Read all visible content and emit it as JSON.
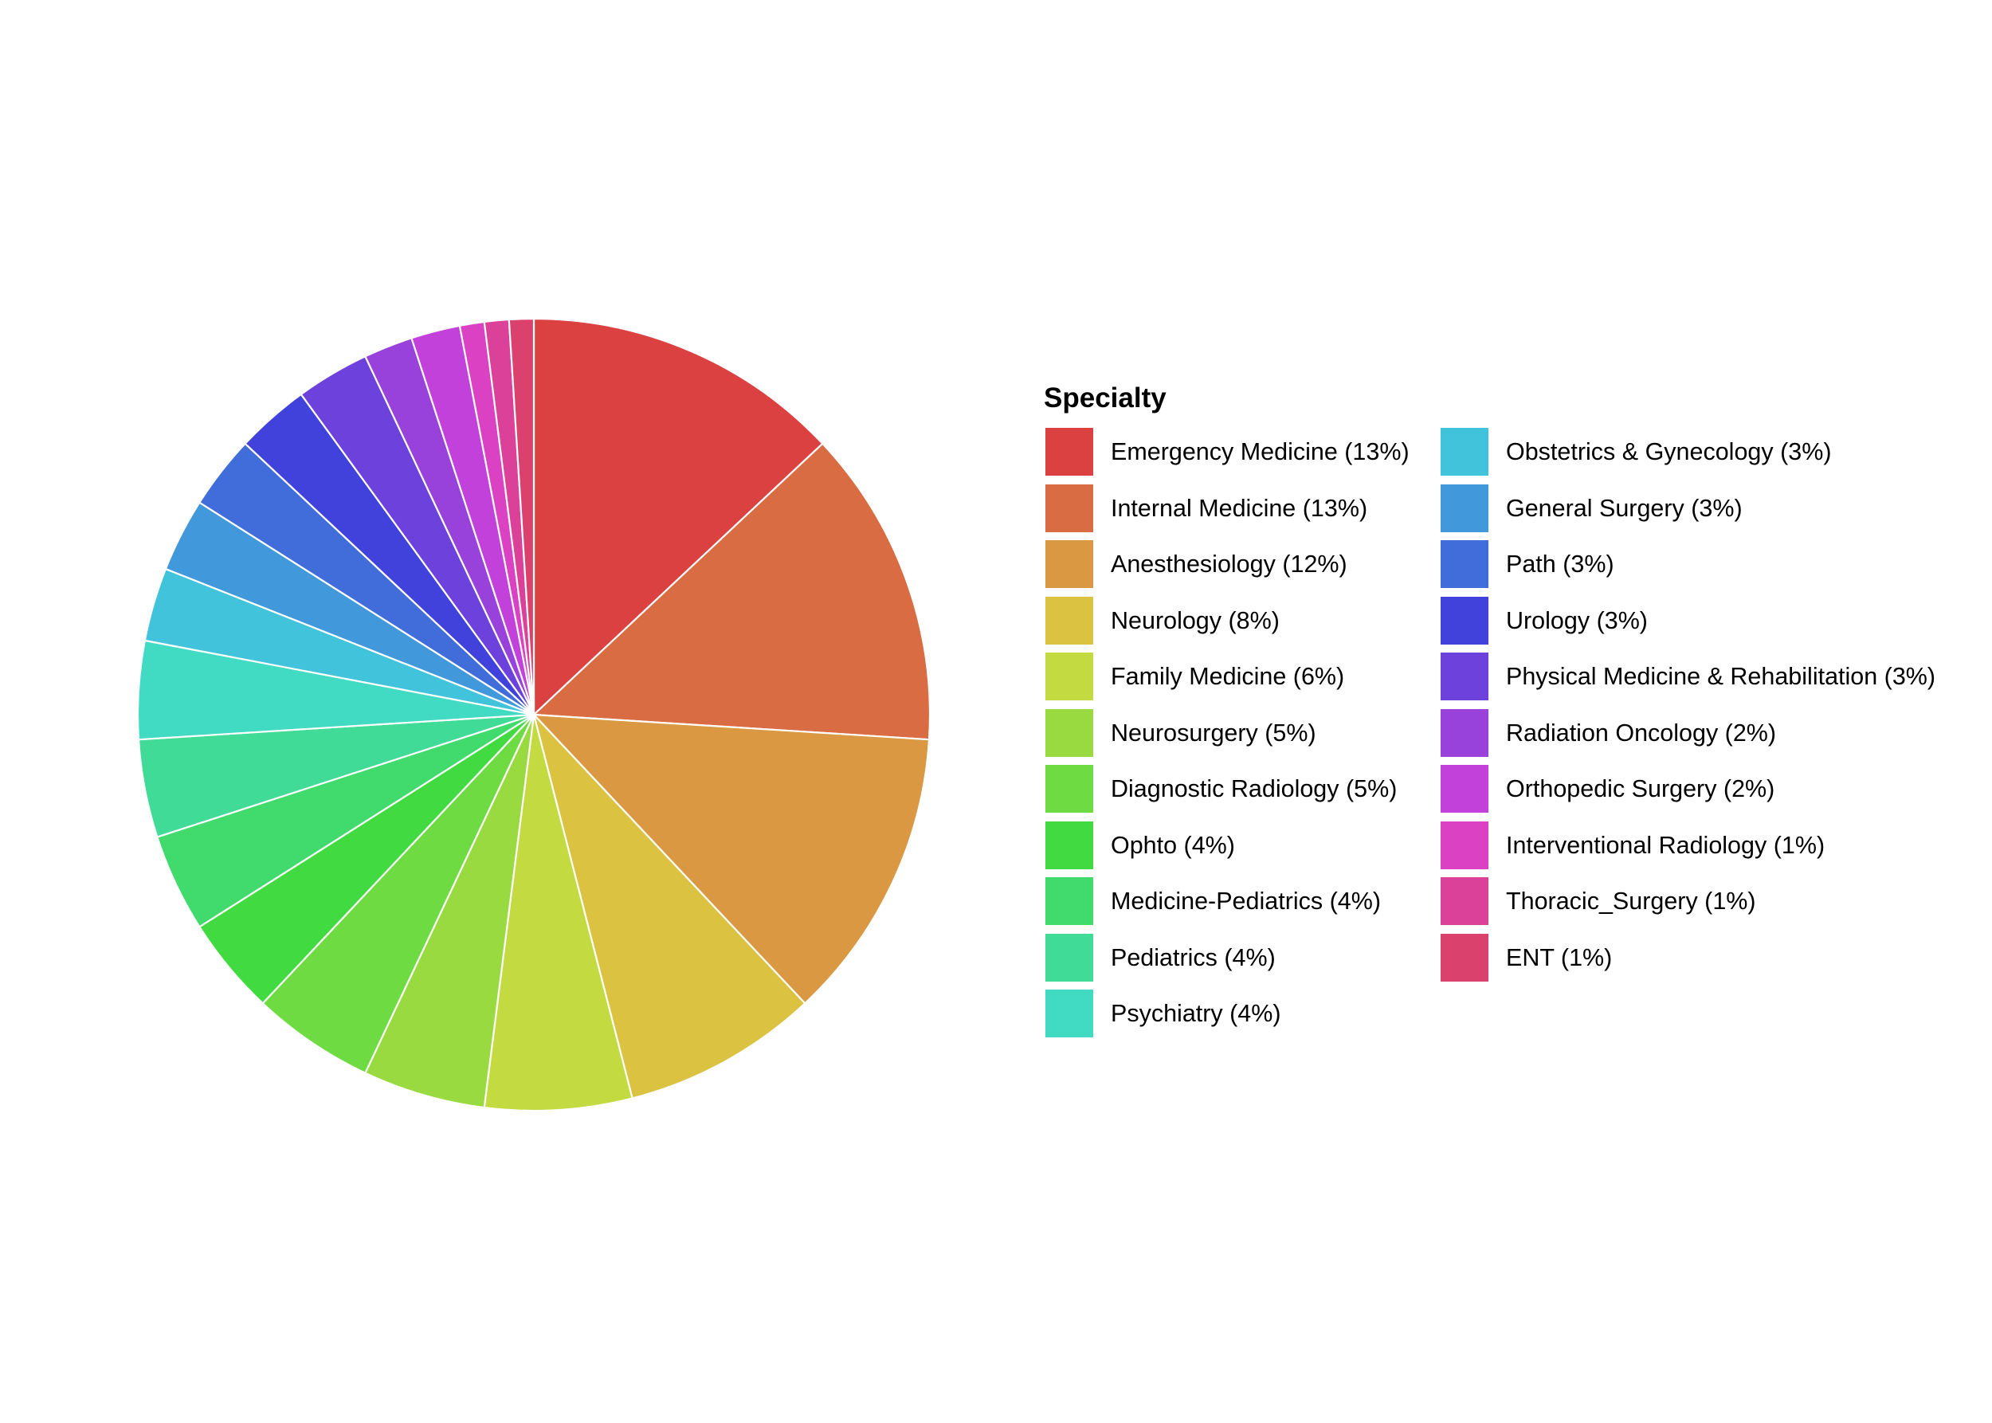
{
  "chart_data": {
    "type": "pie",
    "legend_title": "Specialty",
    "legend_placement": "right",
    "legend_columns": 2,
    "slice_order": "clockwise from 12 o'clock, in legend order",
    "slice_border_color": "#ffffff",
    "slices": [
      {
        "label": "Emergency Medicine (13%)",
        "value": 13,
        "color": "#db4140"
      },
      {
        "label": "Internal Medicine (13%)",
        "value": 13,
        "color": "#d96c42"
      },
      {
        "label": "Anesthesiology (12%)",
        "value": 12,
        "color": "#d99841"
      },
      {
        "label": "Neurology (8%)",
        "value": 8,
        "color": "#dbc241"
      },
      {
        "label": "Family Medicine (6%)",
        "value": 6,
        "color": "#c3da41"
      },
      {
        "label": "Neurosurgery (5%)",
        "value": 5,
        "color": "#99da41"
      },
      {
        "label": "Diagnostic Radiology (5%)",
        "value": 5,
        "color": "#6ddb41"
      },
      {
        "label": "Ophto (4%)",
        "value": 4,
        "color": "#41db41"
      },
      {
        "label": "Medicine-Pediatrics (4%)",
        "value": 4,
        "color": "#41db6d"
      },
      {
        "label": "Pediatrics (4%)",
        "value": 4,
        "color": "#41db98"
      },
      {
        "label": "Psychiatry (4%)",
        "value": 4,
        "color": "#41dbc3"
      },
      {
        "label": "Obstetrics & Gynecology (3%)",
        "value": 3,
        "color": "#41c3db"
      },
      {
        "label": "General Surgery (3%)",
        "value": 3,
        "color": "#4198db"
      },
      {
        "label": "Path (3%)",
        "value": 3,
        "color": "#416ddb"
      },
      {
        "label": "Urology (3%)",
        "value": 3,
        "color": "#4141db"
      },
      {
        "label": "Physical Medicine & Rehabilitation (3%)",
        "value": 3,
        "color": "#6d41db"
      },
      {
        "label": "Radiation Oncology (2%)",
        "value": 2,
        "color": "#9841db"
      },
      {
        "label": "Orthopedic Surgery (2%)",
        "value": 2,
        "color": "#c341db"
      },
      {
        "label": "Interventional Radiology (1%)",
        "value": 1,
        "color": "#db41c3"
      },
      {
        "label": "Thoracic_Surgery (1%)",
        "value": 1,
        "color": "#db4198"
      },
      {
        "label": "ENT (1%)",
        "value": 1,
        "color": "#db416d"
      }
    ]
  }
}
